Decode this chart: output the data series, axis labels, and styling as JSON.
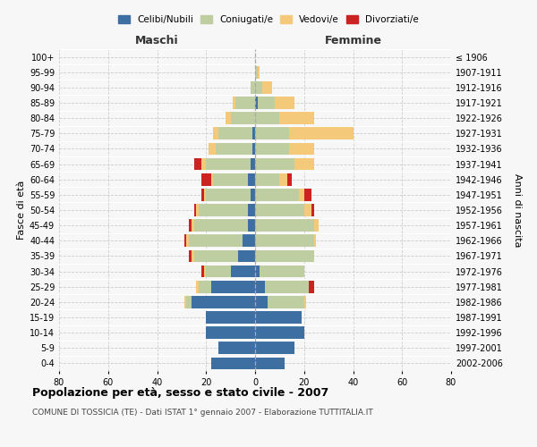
{
  "age_groups": [
    "0-4",
    "5-9",
    "10-14",
    "15-19",
    "20-24",
    "25-29",
    "30-34",
    "35-39",
    "40-44",
    "45-49",
    "50-54",
    "55-59",
    "60-64",
    "65-69",
    "70-74",
    "75-79",
    "80-84",
    "85-89",
    "90-94",
    "95-99",
    "100+"
  ],
  "birth_years": [
    "2002-2006",
    "1997-2001",
    "1992-1996",
    "1987-1991",
    "1982-1986",
    "1977-1981",
    "1972-1976",
    "1967-1971",
    "1962-1966",
    "1957-1961",
    "1952-1956",
    "1947-1951",
    "1942-1946",
    "1937-1941",
    "1932-1936",
    "1927-1931",
    "1922-1926",
    "1917-1921",
    "1912-1916",
    "1907-1911",
    "≤ 1906"
  ],
  "maschi": {
    "celibi": [
      18,
      15,
      20,
      20,
      26,
      18,
      10,
      7,
      5,
      3,
      3,
      2,
      3,
      2,
      1,
      1,
      0,
      0,
      0,
      0,
      0
    ],
    "coniugati": [
      0,
      0,
      0,
      0,
      2,
      5,
      10,
      18,
      22,
      22,
      20,
      18,
      14,
      18,
      15,
      14,
      10,
      8,
      2,
      0,
      0
    ],
    "vedovi": [
      0,
      0,
      0,
      0,
      1,
      1,
      1,
      1,
      1,
      1,
      1,
      1,
      1,
      2,
      3,
      2,
      2,
      1,
      0,
      0,
      0
    ],
    "divorziati": [
      0,
      0,
      0,
      0,
      0,
      0,
      1,
      1,
      1,
      1,
      1,
      1,
      4,
      3,
      0,
      0,
      0,
      0,
      0,
      0,
      0
    ]
  },
  "femmine": {
    "nubili": [
      12,
      16,
      20,
      19,
      5,
      4,
      2,
      0,
      0,
      0,
      0,
      0,
      0,
      0,
      0,
      0,
      0,
      1,
      0,
      0,
      0
    ],
    "coniugate": [
      0,
      0,
      0,
      0,
      15,
      18,
      18,
      24,
      24,
      24,
      20,
      18,
      10,
      16,
      14,
      14,
      10,
      7,
      3,
      1,
      0
    ],
    "vedove": [
      0,
      0,
      0,
      0,
      1,
      0,
      0,
      0,
      1,
      2,
      3,
      2,
      3,
      8,
      10,
      26,
      14,
      8,
      4,
      1,
      0
    ],
    "divorziate": [
      0,
      0,
      0,
      0,
      0,
      2,
      0,
      0,
      0,
      0,
      1,
      3,
      2,
      0,
      0,
      0,
      0,
      0,
      0,
      0,
      0
    ]
  },
  "colors": {
    "celibi_nubili": "#3d6fa3",
    "coniugati_e": "#bfcea0",
    "vedovi_e": "#f5c97a",
    "divorziati_e": "#cc2222"
  },
  "title": "Popolazione per età, sesso e stato civile - 2007",
  "subtitle": "COMUNE DI TOSSICIA (TE) - Dati ISTAT 1° gennaio 2007 - Elaborazione TUTTITALIA.IT",
  "ylabel_left": "Fasce di età",
  "ylabel_right": "Anni di nascita",
  "xlim": 80,
  "legend_labels": [
    "Celibi/Nubili",
    "Coniugati/e",
    "Vedovi/e",
    "Divorziati/e"
  ],
  "maschi_label": "Maschi",
  "femmine_label": "Femmine",
  "background_color": "#f7f7f7"
}
